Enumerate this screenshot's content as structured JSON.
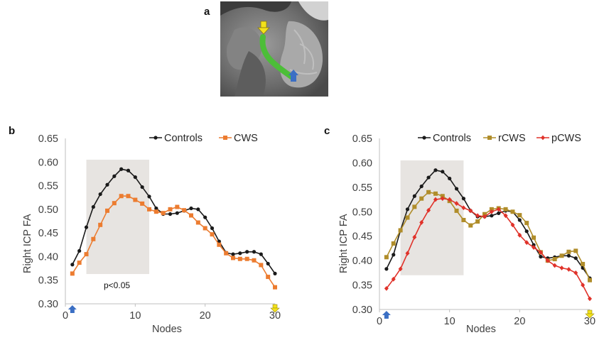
{
  "panels": {
    "a": "a",
    "b": "b",
    "c": "c"
  },
  "colors": {
    "controls": "#1a1a1a",
    "cws": "#ec7c30",
    "rcws": "#b08d2a",
    "pcws": "#e0322a",
    "shade": "#e7e4e1",
    "tract": "#4cbe38",
    "arrow_start": "#3b6fc4",
    "arrow_end": "#f3e21a"
  },
  "chart_data": [
    {
      "type": "line",
      "panel": "b",
      "title": "",
      "xlabel": "Nodes",
      "ylabel": "Right ICP FA",
      "xlim": [
        0,
        30
      ],
      "ylim": [
        0.3,
        0.65
      ],
      "yticks": [
        "0.30",
        "0.35",
        "0.40",
        "0.45",
        "0.50",
        "0.55",
        "0.60",
        "0.65"
      ],
      "xticks": [
        "0",
        "10",
        "20",
        "30"
      ],
      "x": [
        1,
        2,
        3,
        4,
        5,
        6,
        7,
        8,
        9,
        10,
        11,
        12,
        13,
        14,
        15,
        16,
        17,
        18,
        19,
        20,
        21,
        22,
        23,
        24,
        25,
        26,
        27,
        28,
        29,
        30
      ],
      "legend": {
        "position": "top-right"
      },
      "shaded_region": {
        "x": [
          3,
          12
        ],
        "y": [
          0.363,
          0.605
        ],
        "label": "p<0.05"
      },
      "series": [
        {
          "name": "Controls",
          "color": "#1a1a1a",
          "marker": "circle",
          "values": [
            0.383,
            0.412,
            0.462,
            0.505,
            0.532,
            0.552,
            0.57,
            0.585,
            0.582,
            0.568,
            0.547,
            0.527,
            0.502,
            0.49,
            0.49,
            0.492,
            0.497,
            0.502,
            0.5,
            0.483,
            0.46,
            0.432,
            0.408,
            0.405,
            0.407,
            0.41,
            0.41,
            0.405,
            0.385,
            0.364
          ]
        },
        {
          "name": "CWS",
          "color": "#ec7c30",
          "marker": "square",
          "values": [
            0.364,
            0.387,
            0.405,
            0.437,
            0.467,
            0.497,
            0.513,
            0.528,
            0.528,
            0.52,
            0.512,
            0.5,
            0.495,
            0.492,
            0.5,
            0.505,
            0.498,
            0.487,
            0.472,
            0.46,
            0.447,
            0.425,
            0.407,
            0.397,
            0.395,
            0.395,
            0.392,
            0.382,
            0.357,
            0.335
          ]
        }
      ],
      "x_markers": [
        {
          "x": 1,
          "icon": "blue-up-arrow-icon"
        },
        {
          "x": 30,
          "icon": "yellow-down-arrow-icon"
        }
      ]
    },
    {
      "type": "line",
      "panel": "c",
      "title": "",
      "xlabel": "Nodes",
      "ylabel": "Right ICP FA",
      "xlim": [
        0,
        30
      ],
      "ylim": [
        0.3,
        0.65
      ],
      "yticks": [
        "0.30",
        "0.35",
        "0.40",
        "0.45",
        "0.50",
        "0.55",
        "0.60",
        "0.65"
      ],
      "xticks": [
        "0",
        "10",
        "20",
        "30"
      ],
      "x": [
        1,
        2,
        3,
        4,
        5,
        6,
        7,
        8,
        9,
        10,
        11,
        12,
        13,
        14,
        15,
        16,
        17,
        18,
        19,
        20,
        21,
        22,
        23,
        24,
        25,
        26,
        27,
        28,
        29,
        30
      ],
      "legend": {
        "position": "top-right"
      },
      "shaded_region": {
        "x": [
          3,
          12
        ],
        "y": [
          0.37,
          0.605
        ]
      },
      "series": [
        {
          "name": "Controls",
          "color": "#1a1a1a",
          "marker": "circle",
          "values": [
            0.383,
            0.412,
            0.462,
            0.505,
            0.532,
            0.552,
            0.57,
            0.585,
            0.582,
            0.568,
            0.547,
            0.527,
            0.502,
            0.49,
            0.49,
            0.492,
            0.497,
            0.502,
            0.5,
            0.483,
            0.46,
            0.432,
            0.408,
            0.405,
            0.407,
            0.41,
            0.41,
            0.405,
            0.385,
            0.364
          ]
        },
        {
          "name": "rCWS",
          "color": "#b08d2a",
          "marker": "square",
          "values": [
            0.407,
            0.435,
            0.462,
            0.488,
            0.51,
            0.527,
            0.54,
            0.537,
            0.532,
            0.522,
            0.502,
            0.483,
            0.472,
            0.48,
            0.495,
            0.505,
            0.507,
            0.505,
            0.5,
            0.493,
            0.477,
            0.447,
            0.417,
            0.4,
            0.403,
            0.41,
            0.418,
            0.42,
            0.393,
            0.36
          ]
        },
        {
          "name": "pCWS",
          "color": "#e0322a",
          "marker": "diamond",
          "values": [
            0.343,
            0.362,
            0.383,
            0.415,
            0.448,
            0.478,
            0.503,
            0.525,
            0.527,
            0.525,
            0.517,
            0.508,
            0.502,
            0.492,
            0.49,
            0.5,
            0.505,
            0.492,
            0.473,
            0.452,
            0.437,
            0.427,
            0.417,
            0.4,
            0.39,
            0.385,
            0.382,
            0.375,
            0.35,
            0.322
          ]
        }
      ],
      "x_markers": [
        {
          "x": 1,
          "icon": "blue-up-arrow-icon"
        },
        {
          "x": 30,
          "icon": "yellow-down-arrow-icon"
        }
      ]
    }
  ]
}
